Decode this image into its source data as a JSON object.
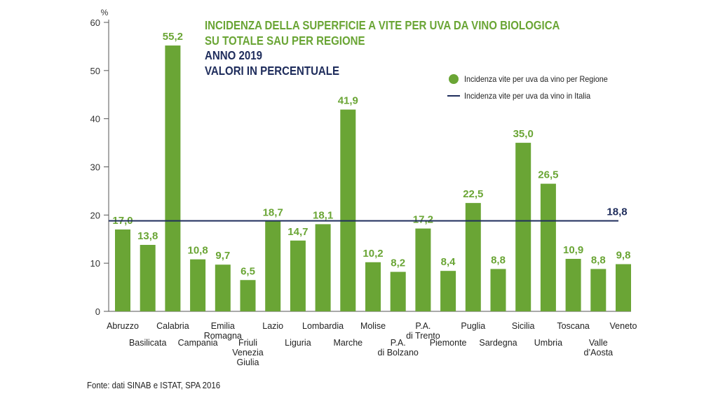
{
  "title": {
    "line1": "INCIDENZA DELLA SUPERFICIE A VITE PER UVA DA VINO BIOLOGICA",
    "line2": "SU TOTALE SAU PER REGIONE",
    "line3": "ANNO 2019",
    "line4": "VALORI IN PERCENTUALE"
  },
  "legend": {
    "regions": "Incidenza vite per uva da vino per Regione",
    "italy": "Incidenza vite per uva da vino in Italia"
  },
  "source": "Fonte: dati SINAB e ISTAT, SPA 2016",
  "colors": {
    "bar": "#6aa535",
    "reference_line": "#1f2d5c",
    "axis": "#555555",
    "label": "#6aa535"
  },
  "chart_data": {
    "type": "bar",
    "ylabel": "%",
    "ylim": [
      0,
      60
    ],
    "yticks": [
      0,
      10,
      20,
      30,
      40,
      50,
      60
    ],
    "categories": [
      [
        "Abruzzo"
      ],
      [
        "Basilicata"
      ],
      [
        "Calabria"
      ],
      [
        "Campania"
      ],
      [
        "Emilia",
        "Romagna"
      ],
      [
        "Friuli",
        "Venezia",
        "Giulia"
      ],
      [
        "Lazio"
      ],
      [
        "Liguria"
      ],
      [
        "Lombardia"
      ],
      [
        "Marche"
      ],
      [
        "Molise"
      ],
      [
        "P.A.",
        "di Bolzano"
      ],
      [
        "P.A.",
        "di Trento"
      ],
      [
        "Piemonte"
      ],
      [
        "Puglia"
      ],
      [
        "Sardegna"
      ],
      [
        "Sicilia"
      ],
      [
        "Umbria"
      ],
      [
        "Toscana"
      ],
      [
        "Valle",
        "d’Aosta"
      ],
      [
        "Veneto"
      ]
    ],
    "series": [
      {
        "values": [
          17.0,
          13.8,
          55.2,
          10.8,
          9.7,
          6.5,
          18.7,
          14.7,
          18.1,
          41.9,
          10.2,
          8.2,
          17.2,
          8.4,
          22.5,
          8.8,
          35.0,
          26.5,
          10.9,
          8.8,
          9.8
        ],
        "value_labels": [
          "17,0",
          "13,8",
          "55,2",
          "10,8",
          "9,7",
          "6,5",
          "18,7",
          "14,7",
          "18,1",
          "41,9",
          "10,2",
          "8,2",
          "17,2",
          "8,4",
          "22,5",
          "8,8",
          "35,0",
          "26,5",
          "10,9",
          "8,8",
          "9,8"
        ]
      }
    ],
    "reference_line": {
      "value": 18.8,
      "label": "18,8"
    }
  }
}
